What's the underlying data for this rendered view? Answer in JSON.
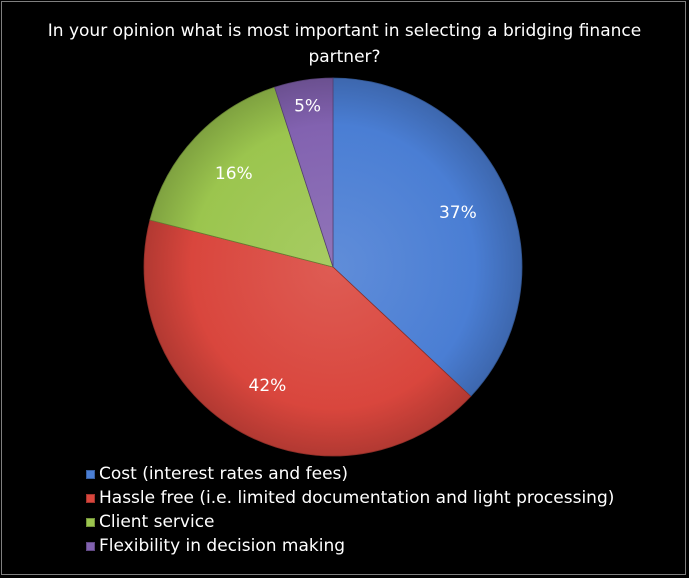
{
  "chart_data": {
    "type": "pie",
    "title": "In your opinion what is most important in selecting a bridging finance partner?",
    "categories": [
      "Cost (interest rates and fees)",
      "Hassle free (i.e. limited documentation and light processing)",
      "Client service",
      "Flexibility in decision making"
    ],
    "values": [
      37,
      42,
      16,
      5
    ],
    "data_labels": [
      "37%",
      "42%",
      "16%",
      "5%"
    ],
    "colors": [
      "#4a7ed4",
      "#d9463d",
      "#9bc54e",
      "#8262b0"
    ],
    "legend_position": "bottom-left"
  }
}
